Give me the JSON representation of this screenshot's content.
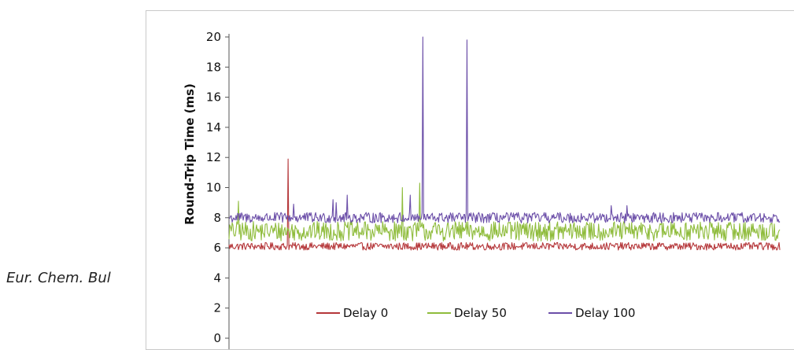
{
  "page": {
    "citation": "Eur. Chem. Bul"
  },
  "chart_data": {
    "type": "line",
    "ylabel": "Round-Trip Time (ms)",
    "ylim": [
      0,
      20
    ],
    "yticks": [
      "0",
      "2",
      "4",
      "6",
      "8",
      "10",
      "12",
      "14",
      "16",
      "18",
      "20"
    ],
    "samples": 700,
    "legend_position": "bottom-center",
    "series": [
      {
        "name": "Delay 0",
        "color": "#b5373a",
        "baseline": 6.1,
        "jitter": 0.25,
        "spikes": [
          {
            "x": 75,
            "y": 11.9
          }
        ]
      },
      {
        "name": "Delay 50",
        "color": "#8fbc3c",
        "baseline": 7.1,
        "jitter": 0.65,
        "spikes": [
          {
            "x": 12,
            "y": 9.1
          },
          {
            "x": 220,
            "y": 10.0
          },
          {
            "x": 242,
            "y": 10.3
          }
        ]
      },
      {
        "name": "Delay 100",
        "color": "#6b4ea8",
        "baseline": 8.0,
        "jitter": 0.35,
        "spikes": [
          {
            "x": 82,
            "y": 8.9
          },
          {
            "x": 132,
            "y": 9.2
          },
          {
            "x": 136,
            "y": 9.0
          },
          {
            "x": 150,
            "y": 9.5
          },
          {
            "x": 230,
            "y": 9.5
          },
          {
            "x": 246,
            "y": 20.0
          },
          {
            "x": 302,
            "y": 19.8
          },
          {
            "x": 485,
            "y": 8.8
          },
          {
            "x": 505,
            "y": 8.8
          }
        ]
      }
    ]
  }
}
